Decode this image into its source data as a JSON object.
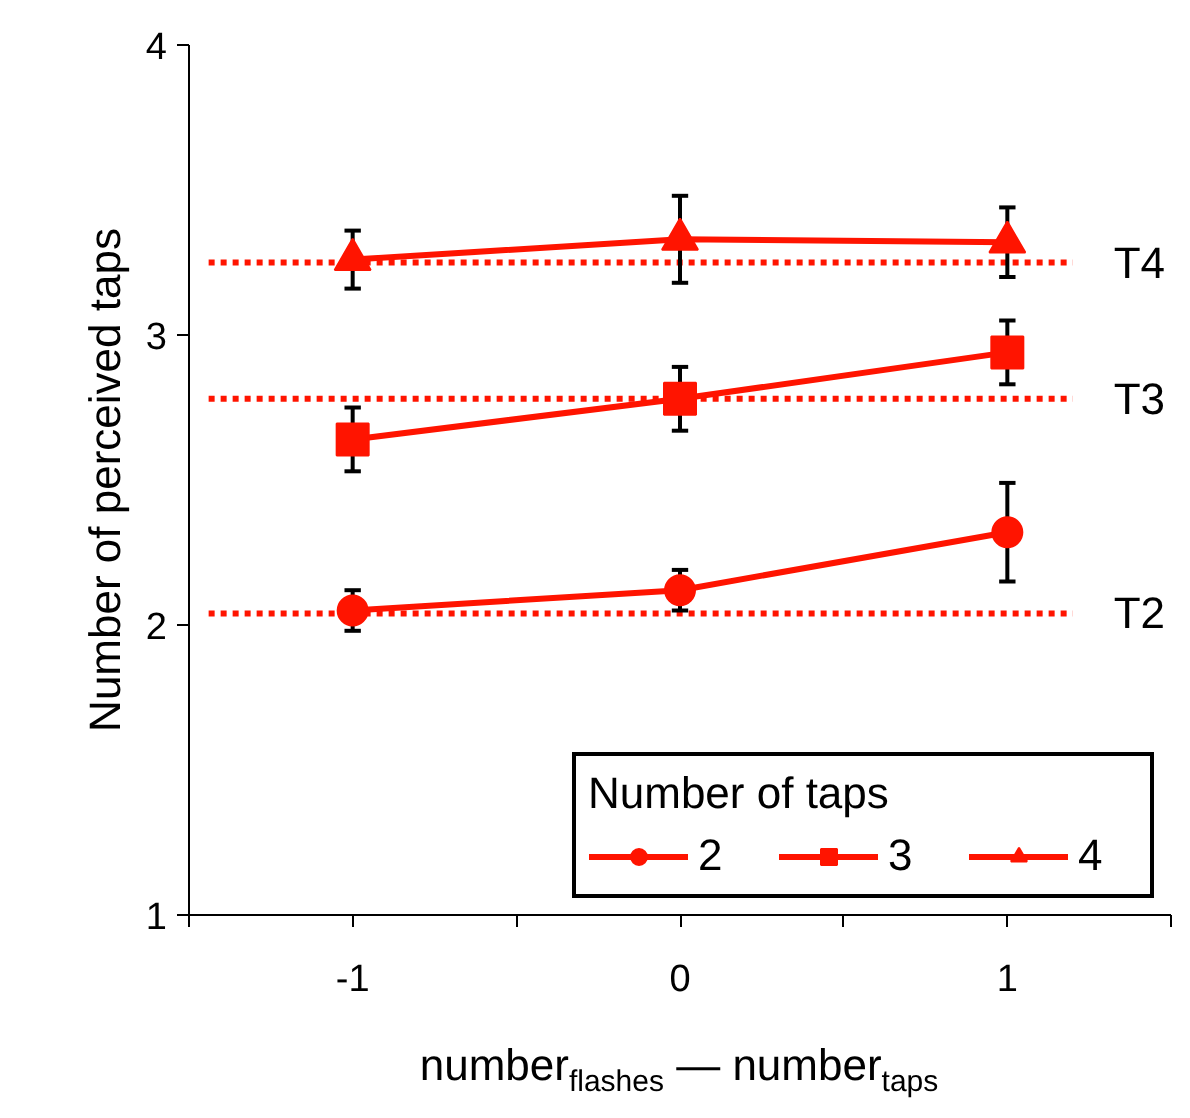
{
  "chart_data": {
    "type": "line",
    "xlabel": "number$_{flashes}$ — number$_{taps}$",
    "ylabel": "Number of perceived taps",
    "legend_title": "Number of taps",
    "x": [
      -1,
      0,
      1
    ],
    "xlim": [
      -1.5,
      1.5
    ],
    "xticks": [
      {
        "value": -1.5,
        "label": null
      },
      -1,
      {
        "value": -0.5,
        "label": null
      },
      0,
      {
        "value": 0.5,
        "label": null
      },
      1,
      {
        "value": 1.5,
        "label": null
      }
    ],
    "ylim": [
      1,
      4
    ],
    "yticks": [
      1,
      2,
      3,
      4
    ],
    "grid": false,
    "legend": "bottom right",
    "series": [
      {
        "name": "2",
        "color": "#ff1400",
        "marker": "circle",
        "values": [
          2.05,
          2.12,
          2.32
        ],
        "errors": [
          0.07,
          0.07,
          0.17
        ]
      },
      {
        "name": "3",
        "color": "#ff1400",
        "marker": "square",
        "values": [
          2.64,
          2.78,
          2.94
        ],
        "errors": [
          0.11,
          0.11,
          0.11
        ]
      },
      {
        "name": "4",
        "color": "#ff1400",
        "marker": "triangle",
        "values": [
          3.26,
          3.33,
          3.32
        ],
        "errors": [
          0.1,
          0.15,
          0.12
        ]
      }
    ],
    "ref_lines": [
      {
        "axis": "y",
        "value": 2.04,
        "label": "T2",
        "color": "#ff1400",
        "line_style": "dotted"
      },
      {
        "axis": "y",
        "value": 2.78,
        "label": "T3",
        "color": "#ff1400",
        "line_style": "dotted"
      },
      {
        "axis": "y",
        "value": 3.25,
        "label": "T4",
        "color": "#ff1400",
        "line_style": "dotted"
      }
    ]
  }
}
